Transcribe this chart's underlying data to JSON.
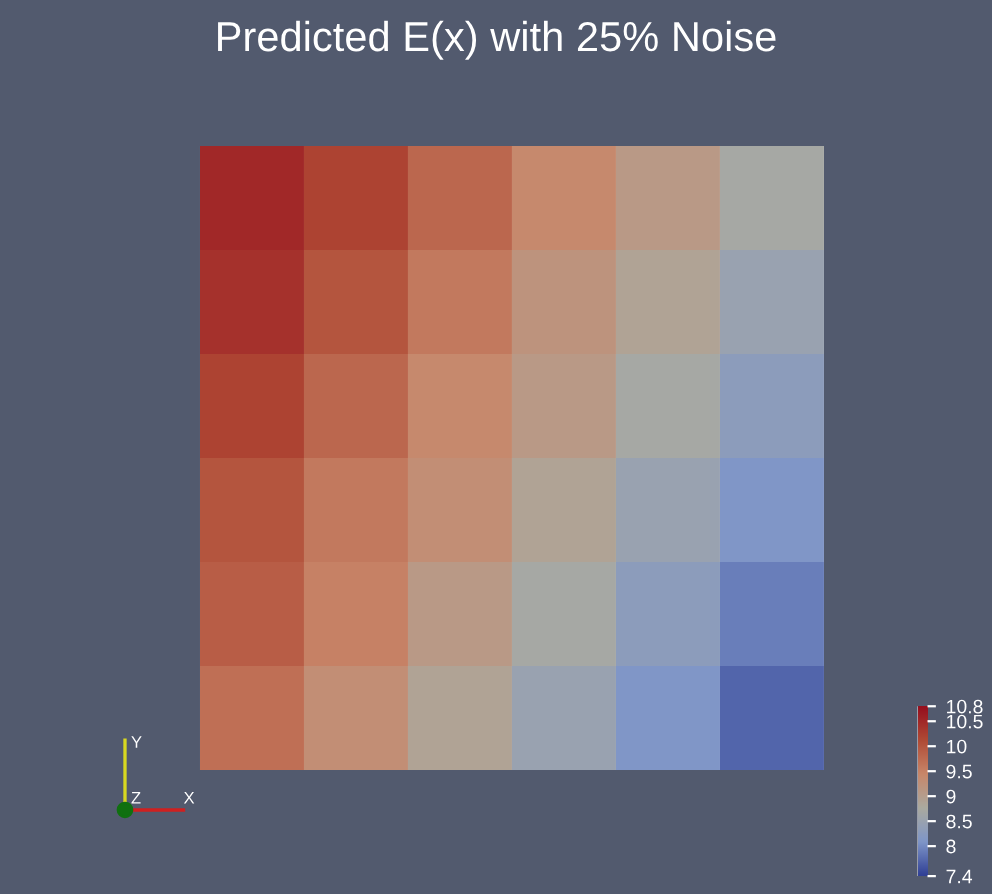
{
  "chart_data": {
    "type": "heatmap",
    "title": "Predicted E(x) with 25% Noise",
    "categories": [
      null,
      null,
      null,
      null,
      null,
      null
    ],
    "y_categories": [
      null,
      null,
      null,
      null,
      null,
      null
    ],
    "cells": [
      [
        10.5,
        10.2,
        9.8,
        9.4,
        9.1,
        8.7
      ],
      [
        10.4,
        10.0,
        9.6,
        9.2,
        8.9,
        8.5
      ],
      [
        10.2,
        9.8,
        9.4,
        9.1,
        8.7,
        8.3
      ],
      [
        10.0,
        9.6,
        9.3,
        8.9,
        8.5,
        8.1
      ],
      [
        9.9,
        9.5,
        9.1,
        8.7,
        8.3,
        7.9
      ],
      [
        9.7,
        9.3,
        8.9,
        8.5,
        8.1,
        7.7
      ]
    ],
    "clim": [
      7.4,
      10.8
    ],
    "cticks": [
      7.4,
      8,
      8.5,
      9,
      9.5,
      10,
      10.5,
      10.8
    ],
    "annotations": [
      "Y",
      "Z",
      "X"
    ]
  }
}
